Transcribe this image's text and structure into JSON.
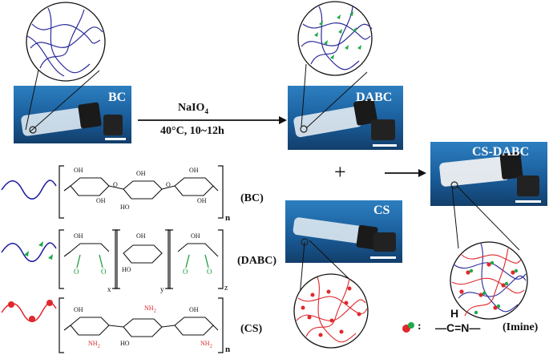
{
  "photos": {
    "bc": {
      "label": "BC"
    },
    "dabc": {
      "label": "DABC"
    },
    "cs": {
      "label": "CS"
    },
    "csdabc": {
      "label": "CS-DABC"
    }
  },
  "reaction": {
    "reagent_main": "NaIO",
    "reagent_sub": "4",
    "conditions": "40°C, 10~12h"
  },
  "plus": "+",
  "structures": {
    "bc_label": "(BC)",
    "dabc_label": "(DABC)",
    "cs_label": "(CS)",
    "sub_n": "n",
    "sub_x": "x",
    "sub_y": "y",
    "sub_z": "z",
    "oh": "OH",
    "ho": "HO",
    "o": "O",
    "nh2": "NH",
    "nh2_sub": "2"
  },
  "legend": {
    "colon": ":",
    "h": "H",
    "formula": "—C=N—",
    "label": "(Imine)"
  },
  "colors": {
    "bc_chain": "#1a1aa0",
    "dabc_marker": "#1faa4a",
    "cs_chain": "#e0282d",
    "aldehyde_green": "#1e9a3c",
    "amine_red": "#d8252b",
    "photo_bg": "#1b5e9e"
  }
}
